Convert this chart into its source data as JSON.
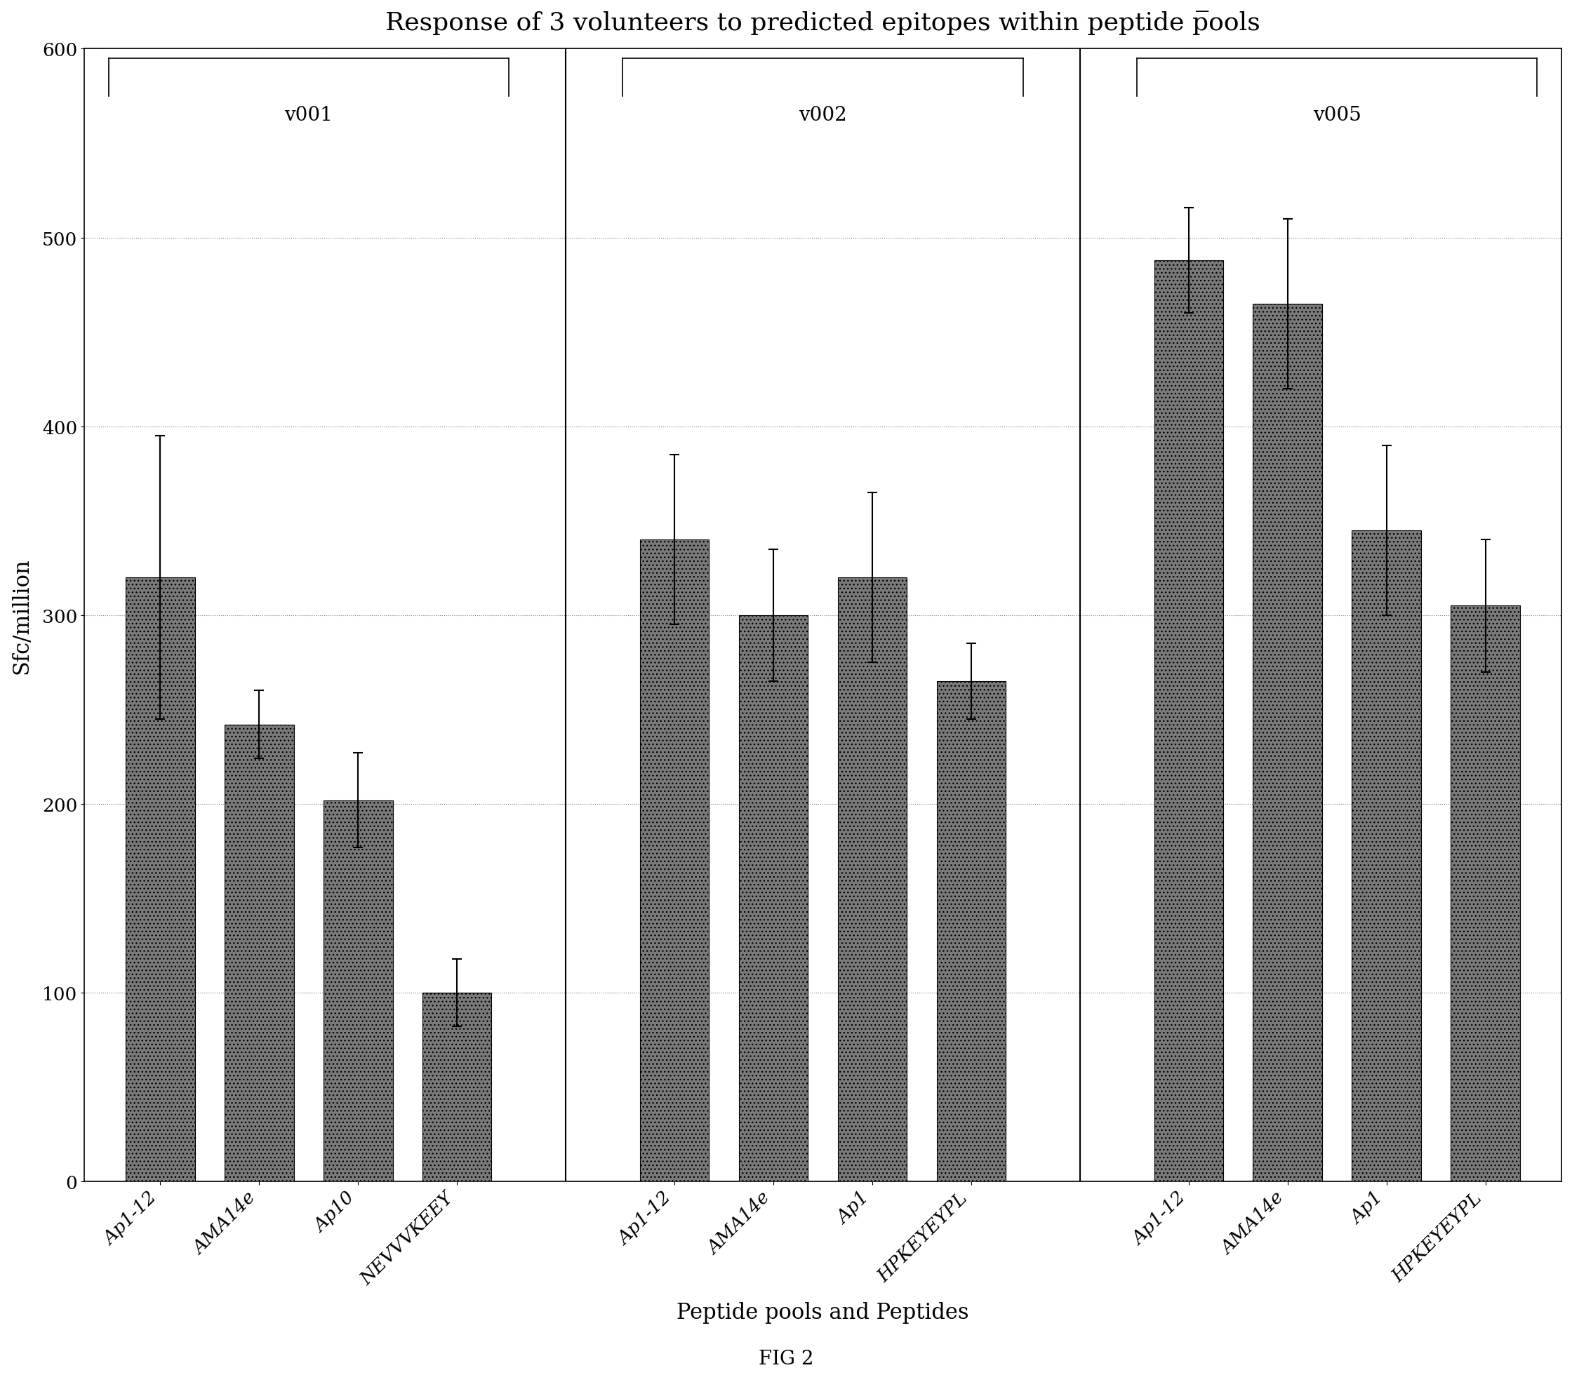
{
  "title": "Response of 3 volunteers to predicted epitopes within peptide p̅ools",
  "xlabel": "Peptide pools and Peptides",
  "ylabel": "Sfc/million",
  "fig_label": "FIG 2",
  "ylim": [
    0,
    600
  ],
  "yticks": [
    0,
    100,
    200,
    300,
    400,
    500,
    600
  ],
  "groups": [
    {
      "label": "v001",
      "bars": [
        {
          "x_label": "Ap1-12",
          "value": 320,
          "error": 75
        },
        {
          "x_label": "AMA14e",
          "value": 242,
          "error": 18
        },
        {
          "x_label": "Ap10",
          "value": 202,
          "error": 25
        },
        {
          "x_label": "NEVVVKEEY",
          "value": 100,
          "error": 18
        }
      ]
    },
    {
      "label": "v002",
      "bars": [
        {
          "x_label": "Ap1-12",
          "value": 340,
          "error": 45
        },
        {
          "x_label": "AMA14e",
          "value": 300,
          "error": 35
        },
        {
          "x_label": "Ap1",
          "value": 320,
          "error": 45
        },
        {
          "x_label": "HPKEYEYPL",
          "value": 265,
          "error": 20
        }
      ]
    },
    {
      "label": "v005",
      "bars": [
        {
          "x_label": "Ap1-12",
          "value": 488,
          "error": 28
        },
        {
          "x_label": "AMA14e",
          "value": 465,
          "error": 45
        },
        {
          "x_label": "Ap1",
          "value": 345,
          "error": 45
        },
        {
          "x_label": "HPKEYEYPL",
          "value": 305,
          "error": 35
        }
      ]
    }
  ],
  "bar_color": "#7a7a7a",
  "background_color": "#ffffff",
  "title_fontsize": 26,
  "label_fontsize": 22,
  "tick_fontsize": 19,
  "group_label_fontsize": 20
}
